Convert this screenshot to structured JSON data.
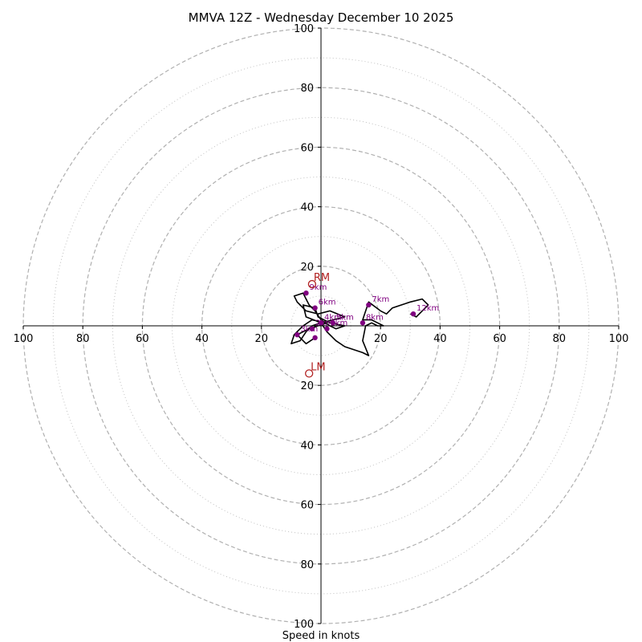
{
  "chart_data": {
    "type": "scatter",
    "subtype": "hodograph",
    "title": "MMVA 12Z - Wednesday December 10 2025",
    "xlabel": "Speed in knots",
    "ylabel": "",
    "axis_range": [
      -100,
      100
    ],
    "major_rings": [
      20,
      40,
      60,
      80,
      100
    ],
    "minor_rings": [
      10,
      30,
      50,
      70,
      90
    ],
    "x_tick_labels": [
      {
        "value": -100,
        "label": "100"
      },
      {
        "value": -80,
        "label": "80"
      },
      {
        "value": -60,
        "label": "60"
      },
      {
        "value": -40,
        "label": "40"
      },
      {
        "value": -20,
        "label": "20"
      },
      {
        "value": 20,
        "label": "20"
      },
      {
        "value": 40,
        "label": "40"
      },
      {
        "value": 60,
        "label": "60"
      },
      {
        "value": 80,
        "label": "80"
      },
      {
        "value": 100,
        "label": "100"
      }
    ],
    "y_tick_labels": [
      {
        "value": 100,
        "label": "100"
      },
      {
        "value": 80,
        "label": "80"
      },
      {
        "value": 60,
        "label": "60"
      },
      {
        "value": 40,
        "label": "40"
      },
      {
        "value": 20,
        "label": "20"
      },
      {
        "value": -20,
        "label": "20"
      },
      {
        "value": -40,
        "label": "40"
      },
      {
        "value": -60,
        "label": "60"
      },
      {
        "value": -80,
        "label": "80"
      },
      {
        "value": -100,
        "label": "100"
      }
    ],
    "trace": {
      "name": "wind profile",
      "color": "#000000",
      "u": [
        -2,
        -5,
        -8,
        -4,
        2,
        -3,
        -6,
        -9,
        -10,
        -7,
        -5,
        -3,
        0,
        4,
        8,
        3,
        -1,
        -5,
        -8,
        -9,
        -6,
        -5,
        -4,
        -2,
        0,
        3,
        5,
        8,
        3,
        -1,
        -2,
        -6,
        -5,
        0,
        2,
        5,
        8,
        14,
        16,
        14,
        15,
        17,
        19,
        21,
        19,
        17,
        14,
        16,
        20,
        22,
        24,
        30,
        34,
        36,
        32,
        30
      ],
      "v": [
        -4,
        -6,
        -3,
        -1,
        1,
        2,
        0,
        -3,
        -6,
        -5,
        -2,
        0,
        1,
        2,
        3,
        5,
        4,
        5,
        8,
        10,
        11,
        9,
        7,
        5,
        2,
        0,
        -1,
        0,
        1,
        3,
        6,
        7,
        3,
        1,
        -2,
        -5,
        -7,
        -9,
        -10,
        -5,
        0,
        1,
        0,
        0,
        1,
        2,
        2,
        8,
        5,
        4,
        6,
        8,
        9,
        7,
        3,
        4
      ]
    },
    "height_points": [
      {
        "label": "",
        "u": -2,
        "v": -4
      },
      {
        "label": "1km",
        "u": 2,
        "v": -1
      },
      {
        "label": "2km",
        "u": -3,
        "v": -1
      },
      {
        "label": "3km",
        "u": -8,
        "v": -3
      },
      {
        "label": "4km",
        "u": 0,
        "v": 1
      },
      {
        "label": "5km",
        "u": 4,
        "v": 1
      },
      {
        "label": "6km",
        "u": -2,
        "v": 6
      },
      {
        "label": "8km",
        "u": 14,
        "v": 1
      },
      {
        "label": "7km",
        "u": 16,
        "v": 7
      },
      {
        "label": "9km",
        "u": -5,
        "v": 11
      },
      {
        "label": "12km",
        "u": 31,
        "v": 4
      }
    ],
    "storm_motion": [
      {
        "label": "RM",
        "u": -3,
        "v": 14
      },
      {
        "label": "LM",
        "u": -4,
        "v": -16
      }
    ],
    "colors": {
      "ring": "#b0b0b0",
      "axis": "#000000",
      "trace": "#000000",
      "height_point": "#800080",
      "storm_motion": "#b22222"
    }
  }
}
